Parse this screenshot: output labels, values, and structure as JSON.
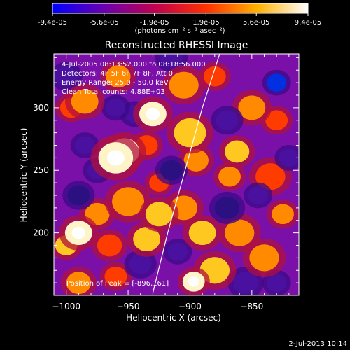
{
  "chart_data": {
    "type": "heatmap",
    "title": "Reconstructed RHESSI Image",
    "xlabel": "Heliocentric X (arcsec)",
    "ylabel": "Heliocentric Y (arcsec)",
    "xlim": [
      -1010,
      -812
    ],
    "ylim": [
      150,
      343
    ],
    "xticks": [
      -1000,
      -950,
      -900,
      -850
    ],
    "yticks": [
      200,
      250,
      300
    ],
    "colorbar": {
      "ticks": [
        "-9.4e-05",
        "-5.6e-05",
        "-1.9e-05",
        "1.9e-05",
        "5.6e-05",
        "9.4e-05"
      ],
      "tick_values": [
        -9.4e-05,
        -5.6e-05,
        -1.9e-05,
        1.9e-05,
        5.6e-05,
        9.4e-05
      ],
      "units": "(photons cm⁻² s⁻¹ asec⁻²)",
      "colormap": [
        "#0000ff",
        "#6a00b0",
        "#c00050",
        "#ff3000",
        "#ffb000",
        "#ffffff"
      ]
    },
    "annotations": {
      "time": "4-Jul-2005 08:13:52.000 to 08:18:56.000",
      "detectors": "Detectors: 4F 5F 6F 7F 8F, Att 0",
      "energy": "Energy Range: 25.0 - 50.0 keV",
      "clean": "Clean    Total counts: 4.88E+03",
      "peak": "Position of Peak = [-896,161]"
    },
    "limb_curve": [
      [
        -930,
        152
      ],
      [
        -918,
        200
      ],
      [
        -904,
        250
      ],
      [
        -890,
        300
      ],
      [
        -876,
        343
      ]
    ],
    "blobs": [
      {
        "x": -960,
        "y": 260,
        "r": 14,
        "v": 1.0
      },
      {
        "x": -953,
        "y": 265,
        "r": 12,
        "v": 0.9
      },
      {
        "x": -985,
        "y": 305,
        "r": 11,
        "v": 0.65
      },
      {
        "x": -996,
        "y": 300,
        "r": 9,
        "v": 0.45
      },
      {
        "x": -958,
        "y": 325,
        "r": 10,
        "v": 0.55
      },
      {
        "x": -930,
        "y": 295,
        "r": 11,
        "v": 0.85
      },
      {
        "x": -935,
        "y": 270,
        "r": 9,
        "v": 0.5
      },
      {
        "x": -905,
        "y": 318,
        "r": 12,
        "v": 0.6
      },
      {
        "x": -880,
        "y": 325,
        "r": 9,
        "v": 0.45
      },
      {
        "x": -900,
        "y": 280,
        "r": 13,
        "v": 0.7
      },
      {
        "x": -895,
        "y": 258,
        "r": 10,
        "v": 0.55
      },
      {
        "x": -862,
        "y": 265,
        "r": 10,
        "v": 0.8
      },
      {
        "x": -868,
        "y": 245,
        "r": 9,
        "v": 0.55
      },
      {
        "x": -835,
        "y": 245,
        "r": 12,
        "v": 0.5
      },
      {
        "x": -950,
        "y": 225,
        "r": 13,
        "v": 0.65
      },
      {
        "x": -925,
        "y": 215,
        "r": 11,
        "v": 0.75
      },
      {
        "x": -975,
        "y": 215,
        "r": 10,
        "v": 0.55
      },
      {
        "x": -990,
        "y": 200,
        "r": 11,
        "v": 0.9
      },
      {
        "x": -1000,
        "y": 190,
        "r": 9,
        "v": 0.7
      },
      {
        "x": -965,
        "y": 190,
        "r": 10,
        "v": 0.5
      },
      {
        "x": -935,
        "y": 195,
        "r": 11,
        "v": 0.7
      },
      {
        "x": -905,
        "y": 220,
        "r": 11,
        "v": 0.6
      },
      {
        "x": -890,
        "y": 200,
        "r": 11,
        "v": 0.8
      },
      {
        "x": -880,
        "y": 170,
        "r": 12,
        "v": 0.75
      },
      {
        "x": -897,
        "y": 161,
        "r": 9,
        "v": 1.0
      },
      {
        "x": -860,
        "y": 200,
        "r": 12,
        "v": 0.55
      },
      {
        "x": -840,
        "y": 180,
        "r": 12,
        "v": 0.65
      },
      {
        "x": -825,
        "y": 215,
        "r": 9,
        "v": 0.55
      },
      {
        "x": -990,
        "y": 160,
        "r": 10,
        "v": 0.6
      },
      {
        "x": -960,
        "y": 165,
        "r": 9,
        "v": 0.45
      },
      {
        "x": -925,
        "y": 240,
        "r": 8,
        "v": 0.5
      },
      {
        "x": -850,
        "y": 300,
        "r": 11,
        "v": 0.6
      },
      {
        "x": -830,
        "y": 290,
        "r": 9,
        "v": 0.4
      },
      {
        "x": -975,
        "y": 250,
        "r": 8,
        "v": -0.6
      },
      {
        "x": -990,
        "y": 230,
        "r": 9,
        "v": -0.7
      },
      {
        "x": -945,
        "y": 295,
        "r": 8,
        "v": -0.55
      },
      {
        "x": -915,
        "y": 250,
        "r": 9,
        "v": -0.7
      },
      {
        "x": -870,
        "y": 220,
        "r": 10,
        "v": -0.65
      },
      {
        "x": -845,
        "y": 230,
        "r": 8,
        "v": -0.55
      },
      {
        "x": -830,
        "y": 320,
        "r": 8,
        "v": -0.9
      },
      {
        "x": -870,
        "y": 290,
        "r": 9,
        "v": -0.6
      },
      {
        "x": -1000,
        "y": 325,
        "r": 9,
        "v": -0.5
      },
      {
        "x": -985,
        "y": 270,
        "r": 8,
        "v": -0.5
      },
      {
        "x": -940,
        "y": 175,
        "r": 9,
        "v": -0.55
      },
      {
        "x": -910,
        "y": 185,
        "r": 8,
        "v": -0.5
      },
      {
        "x": -855,
        "y": 160,
        "r": 10,
        "v": -0.6
      },
      {
        "x": -830,
        "y": 160,
        "r": 8,
        "v": -0.5
      },
      {
        "x": -820,
        "y": 260,
        "r": 8,
        "v": -0.6
      },
      {
        "x": -960,
        "y": 300,
        "r": 8,
        "v": -0.55
      },
      {
        "x": -915,
        "y": 340,
        "r": 9,
        "v": -0.5
      }
    ]
  },
  "footer": {
    "date": "2-Jul-2013 10:14"
  }
}
